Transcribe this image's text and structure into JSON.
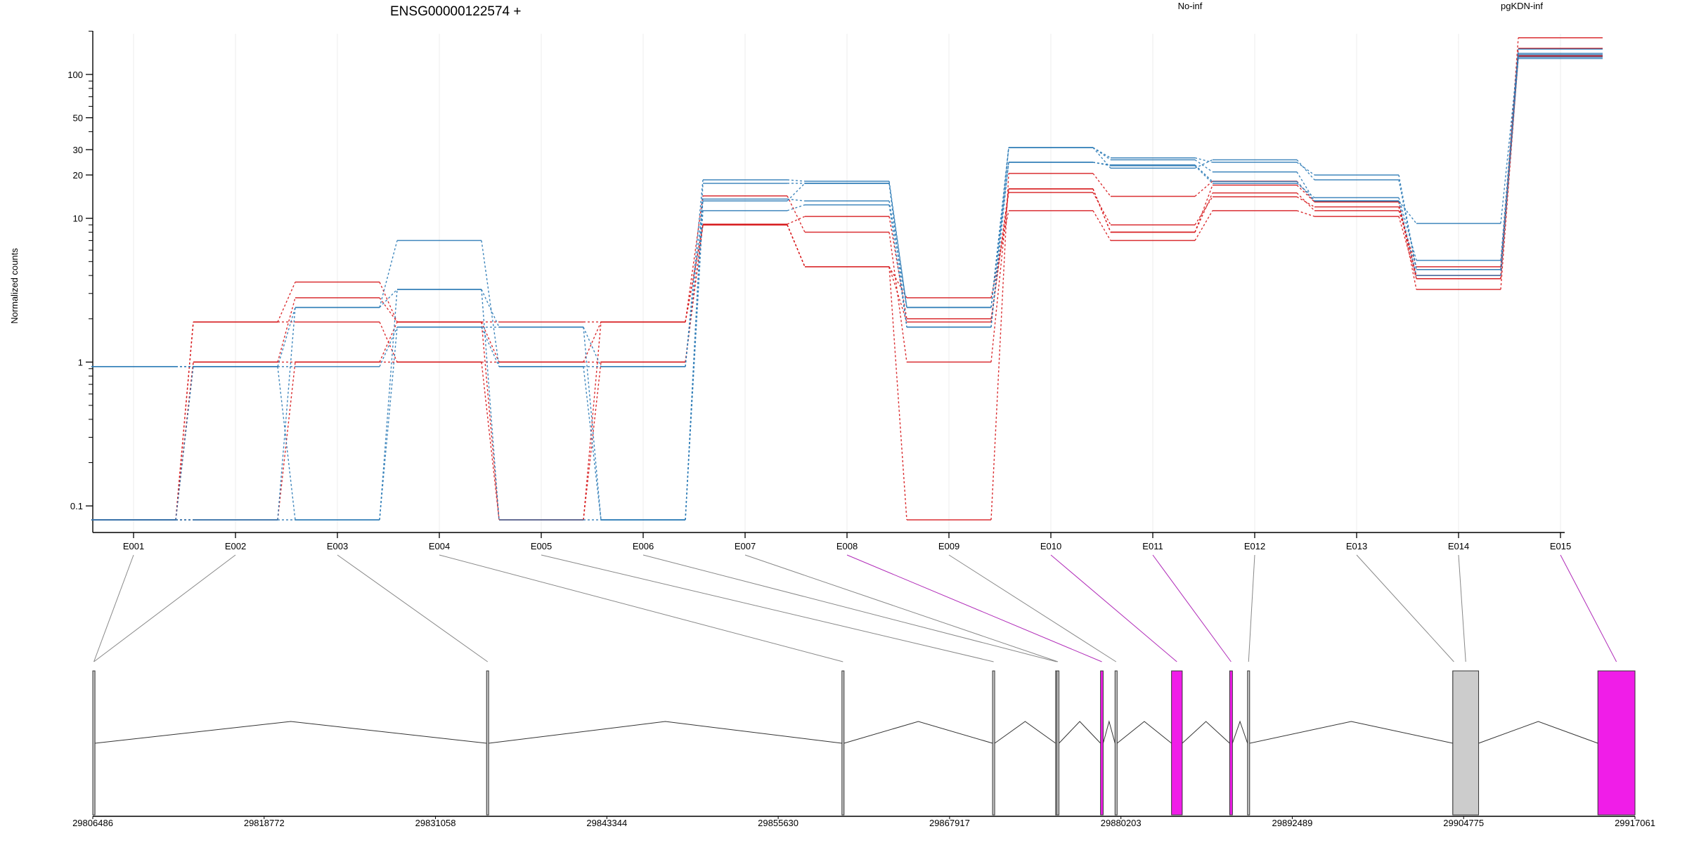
{
  "title": "ENSG00000122574 +",
  "ylabel": "Normalized counts",
  "legend": [
    {
      "name": "No-inf",
      "color": "#d7191c"
    },
    {
      "name": "pgKDN-inf",
      "color": "#2c7bb6"
    }
  ],
  "chart_data": [
    {
      "type": "line",
      "title": "ENSG00000122574 +",
      "ylabel": "Normalized counts",
      "yscale": "log",
      "ylim": [
        0.08,
        210
      ],
      "yticks": [
        0.1,
        1,
        10,
        20,
        30,
        50,
        100
      ],
      "ytick_labels": [
        "0.1",
        "1",
        "10",
        "20",
        "30",
        "50",
        "100"
      ],
      "categories": [
        "E001",
        "E002",
        "E003",
        "E004",
        "E005",
        "E006",
        "E007",
        "E008",
        "E009",
        "E010",
        "E011",
        "E012",
        "E013",
        "E014",
        "E015"
      ],
      "series": [
        {
          "group": "No-inf",
          "color": "#d7191c",
          "values": [
            0.08,
            1.0,
            1.0,
            1.0,
            0.08,
            1.0,
            9.1,
            10.3,
            2.0,
            15.1,
            9.0,
            14.1,
            12.0,
            4.0,
            152
          ]
        },
        {
          "group": "No-inf",
          "color": "#d7191c",
          "values": [
            0.08,
            1.9,
            3.6,
            1.9,
            1.0,
            1.9,
            14.3,
            8.0,
            1.0,
            16.0,
            8.0,
            15.0,
            11.3,
            4.6,
            134
          ]
        },
        {
          "group": "No-inf",
          "color": "#d7191c",
          "values": [
            0.08,
            1.0,
            2.8,
            1.9,
            1.9,
            1.9,
            9.0,
            4.6,
            0.08,
            20.5,
            14.2,
            18.1,
            13.0,
            3.2,
            136
          ]
        },
        {
          "group": "No-inf",
          "color": "#d7191c",
          "values": [
            0.08,
            1.9,
            1.9,
            1.0,
            1.0,
            1.0,
            9.0,
            4.6,
            2.8,
            11.3,
            7.0,
            11.3,
            10.3,
            3.8,
            133
          ]
        },
        {
          "group": "No-inf",
          "color": "#d7191c",
          "values": [
            0.08,
            0.08,
            1.0,
            1.9,
            0.08,
            1.9,
            9.0,
            4.6,
            1.9,
            16.0,
            8.0,
            17.0,
            13.0,
            3.8,
            180
          ]
        },
        {
          "group": "pgKDN-inf",
          "color": "#2c7bb6",
          "values": [
            0.93,
            0.93,
            0.93,
            1.75,
            0.93,
            0.93,
            18.5,
            18.1,
            2.4,
            31.0,
            26.3,
            24.5,
            20.0,
            4.4,
            129
          ]
        },
        {
          "group": "pgKDN-inf",
          "color": "#2c7bb6",
          "values": [
            0.08,
            0.08,
            0.08,
            3.2,
            0.08,
            0.08,
            17.5,
            17.5,
            2.4,
            31.0,
            22.3,
            25.5,
            18.5,
            4.4,
            132
          ]
        },
        {
          "group": "pgKDN-inf",
          "color": "#2c7bb6",
          "values": [
            0.08,
            0.08,
            2.4,
            7.0,
            0.93,
            0.08,
            13.6,
            13.2,
            2.4,
            24.5,
            23.2,
            17.5,
            13.9,
            5.1,
            150
          ]
        },
        {
          "group": "pgKDN-inf",
          "color": "#2c7bb6",
          "values": [
            0.08,
            0.93,
            2.4,
            3.2,
            1.75,
            0.08,
            11.3,
            12.4,
            1.75,
            31.0,
            25.5,
            21.0,
            13.2,
            4.0,
            137
          ]
        },
        {
          "group": "pgKDN-inf",
          "color": "#2c7bb6",
          "values": [
            0.93,
            0.93,
            0.08,
            1.75,
            1.75,
            0.93,
            13.2,
            17.5,
            1.75,
            24.5,
            23.5,
            18.0,
            13.2,
            9.2,
            140
          ]
        }
      ]
    },
    {
      "type": "gene-model",
      "xlim": [
        29806486,
        29917061
      ],
      "xticks": [
        29806486,
        29818772,
        29831058,
        29843344,
        29855630,
        29867917,
        29880203,
        29892489,
        29904775,
        29917061
      ],
      "xtick_labels": [
        "29806486",
        "29818772",
        "29831058",
        "29843344",
        "29855630",
        "29867917",
        "29880203",
        "29892489",
        "29904775",
        "29917061"
      ],
      "exons": [
        {
          "id": "E001",
          "start": 29806486,
          "end": 29806640,
          "highlight": false
        },
        {
          "id": "E002",
          "start": 29806486,
          "end": 29806640,
          "highlight": false
        },
        {
          "id": "E003",
          "start": 29834720,
          "end": 29834860,
          "highlight": false
        },
        {
          "id": "E004",
          "start": 29860200,
          "end": 29860340,
          "highlight": false
        },
        {
          "id": "E005",
          "start": 29871000,
          "end": 29871130,
          "highlight": false
        },
        {
          "id": "E006",
          "start": 29875520,
          "end": 29875600,
          "highlight": false
        },
        {
          "id": "E007",
          "start": 29875610,
          "end": 29875700,
          "highlight": false
        },
        {
          "id": "E008",
          "start": 29878740,
          "end": 29878930,
          "highlight": true
        },
        {
          "id": "E009",
          "start": 29879780,
          "end": 29879880,
          "highlight": false
        },
        {
          "id": "E010",
          "start": 29883830,
          "end": 29884600,
          "highlight": true
        },
        {
          "id": "E011",
          "start": 29888000,
          "end": 29888200,
          "highlight": true
        },
        {
          "id": "E012",
          "start": 29889280,
          "end": 29889380,
          "highlight": false
        },
        {
          "id": "E013",
          "start": 29904000,
          "end": 29904000,
          "highlight": false
        },
        {
          "id": "E014",
          "start": 29904000,
          "end": 29905850,
          "highlight": false
        },
        {
          "id": "E015",
          "start": 29914400,
          "end": 29917061,
          "highlight": true
        }
      ],
      "colors": {
        "highlight": "#f01de8",
        "normal": "#cccccc"
      }
    }
  ]
}
